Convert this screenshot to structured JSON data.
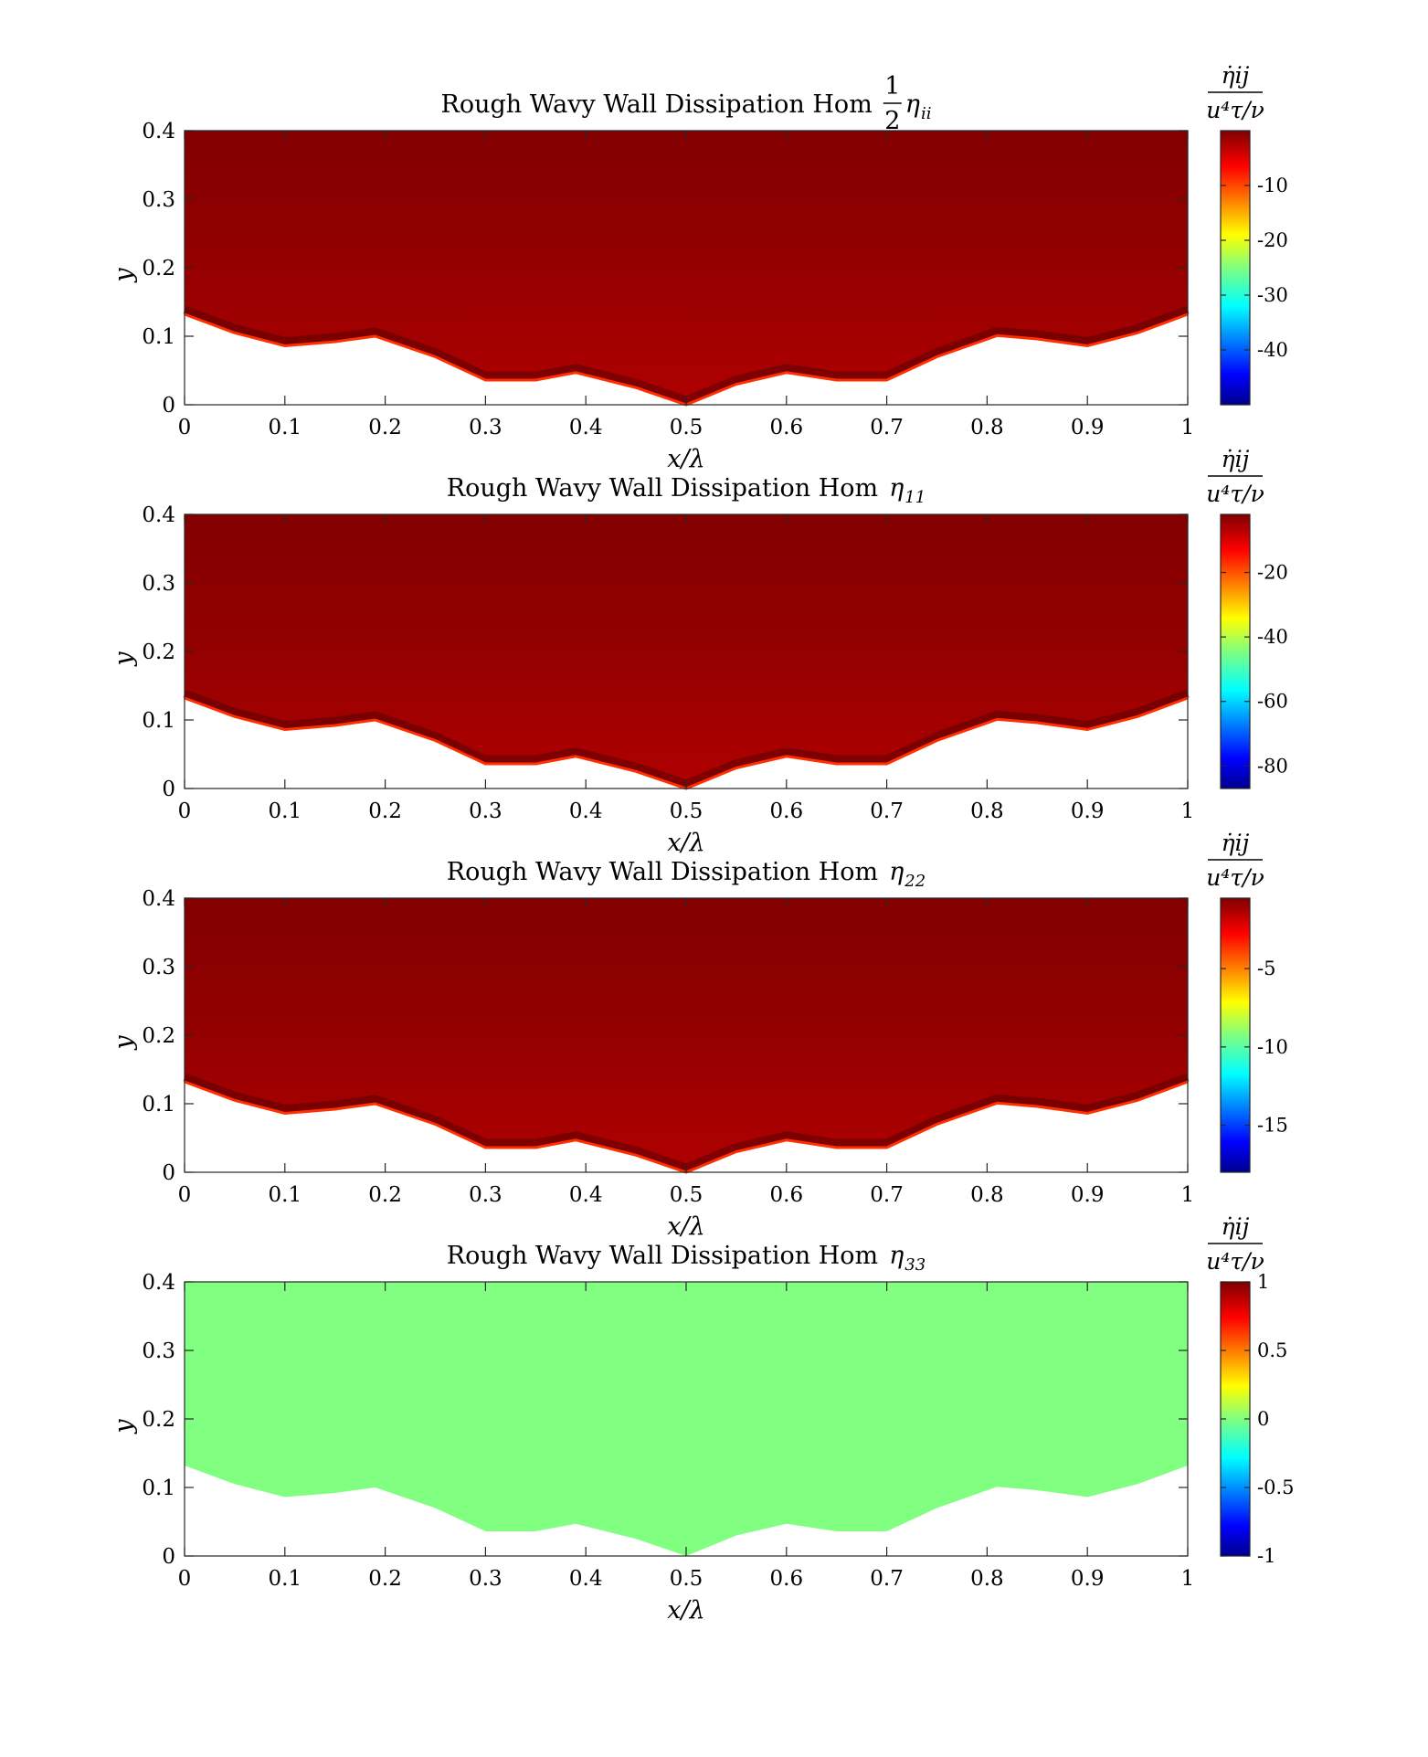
{
  "chart_data": [
    {
      "type": "heatmap",
      "title": "Rough Wavy Wall Dissipation Hom",
      "title_symbol_frac": {
        "num": "1",
        "den": "2"
      },
      "title_symbol": "η",
      "title_subscript": "ii",
      "xlabel": "x/λ",
      "ylabel": "y",
      "xlim": [
        0,
        1
      ],
      "ylim": [
        0,
        0.4
      ],
      "xticks": [
        "0",
        "0.1",
        "0.2",
        "0.3",
        "0.4",
        "0.5",
        "0.6",
        "0.7",
        "0.8",
        "0.9",
        "1"
      ],
      "yticks": [
        "0",
        "0.1",
        "0.2",
        "0.3",
        "0.4"
      ],
      "colorbar": {
        "label_num": "η̇ij",
        "label_den": "u⁴τ/ν",
        "range": [
          -50,
          0
        ],
        "ticks": [
          "-10",
          "-20",
          "-30",
          "-40"
        ],
        "tick_values": [
          -10,
          -20,
          -30,
          -40
        ]
      },
      "field_description": "near-zero (dark red) throughout, strongest dissipation in thin layer along wavy wall",
      "field_value": -1
    },
    {
      "type": "heatmap",
      "title": "Rough Wavy Wall Dissipation Hom",
      "title_symbol": "η",
      "title_subscript": "11",
      "xlabel": "x/λ",
      "ylabel": "y",
      "xlim": [
        0,
        1
      ],
      "ylim": [
        0,
        0.4
      ],
      "xticks": [
        "0",
        "0.1",
        "0.2",
        "0.3",
        "0.4",
        "0.5",
        "0.6",
        "0.7",
        "0.8",
        "0.9",
        "1"
      ],
      "yticks": [
        "0",
        "0.1",
        "0.2",
        "0.3",
        "0.4"
      ],
      "colorbar": {
        "label_num": "η̇ij",
        "label_den": "u⁴τ/ν",
        "range": [
          -87,
          -2
        ],
        "ticks": [
          "-20",
          "-40",
          "-60",
          "-80"
        ],
        "tick_values": [
          -20,
          -40,
          -60,
          -80
        ]
      },
      "field_value": -3
    },
    {
      "type": "heatmap",
      "title": "Rough Wavy Wall Dissipation Hom",
      "title_symbol": "η",
      "title_subscript": "22",
      "xlabel": "x/λ",
      "ylabel": "y",
      "xlim": [
        0,
        1
      ],
      "ylim": [
        0,
        0.4
      ],
      "xticks": [
        "0",
        "0.1",
        "0.2",
        "0.3",
        "0.4",
        "0.5",
        "0.6",
        "0.7",
        "0.8",
        "0.9",
        "1"
      ],
      "yticks": [
        "0",
        "0.1",
        "0.2",
        "0.3",
        "0.4"
      ],
      "colorbar": {
        "label_num": "η̇ij",
        "label_den": "u⁴τ/ν",
        "range": [
          -18,
          -0.5
        ],
        "ticks": [
          "-5",
          "-10",
          "-15"
        ],
        "tick_values": [
          -5,
          -10,
          -15
        ]
      },
      "field_value": -0.8
    },
    {
      "type": "heatmap",
      "title": "Rough Wavy Wall Dissipation Hom",
      "title_symbol": "η",
      "title_subscript": "33",
      "xlabel": "x/λ",
      "ylabel": "y",
      "xlim": [
        0,
        1
      ],
      "ylim": [
        0,
        0.4
      ],
      "xticks": [
        "0",
        "0.1",
        "0.2",
        "0.3",
        "0.4",
        "0.5",
        "0.6",
        "0.7",
        "0.8",
        "0.9",
        "1"
      ],
      "yticks": [
        "0",
        "0.1",
        "0.2",
        "0.3",
        "0.4"
      ],
      "colorbar": {
        "label_num": "η̇ij",
        "label_den": "u⁴τ/ν",
        "range": [
          -1,
          1
        ],
        "ticks": [
          "1",
          "0.5",
          "0",
          "-0.5",
          "-1"
        ],
        "tick_values": [
          1,
          0.5,
          0,
          -0.5,
          -1
        ]
      },
      "field_value": 0
    }
  ],
  "wall_profile": {
    "x": [
      0,
      0.05,
      0.1,
      0.15,
      0.19,
      0.25,
      0.3,
      0.35,
      0.39,
      0.45,
      0.5,
      0.55,
      0.6,
      0.65,
      0.7,
      0.75,
      0.81,
      0.85,
      0.9,
      0.95,
      1.0
    ],
    "y": [
      0.132,
      0.105,
      0.086,
      0.092,
      0.1,
      0.07,
      0.036,
      0.036,
      0.047,
      0.025,
      0.0,
      0.03,
      0.047,
      0.036,
      0.036,
      0.07,
      0.101,
      0.096,
      0.086,
      0.105,
      0.132
    ]
  }
}
